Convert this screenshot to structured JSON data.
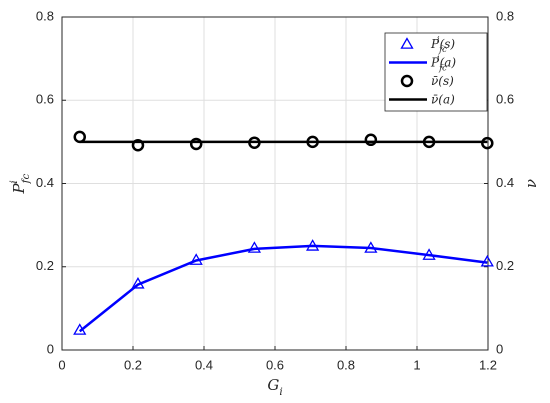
{
  "chart_data": {
    "type": "line",
    "xlabel": {
      "base": "G",
      "sub": "i"
    },
    "ylabel": {
      "base": "P",
      "sub": "fc",
      "sup": "i"
    },
    "y2label": {
      "base": "ν"
    },
    "xlim": [
      0,
      1.2
    ],
    "xticks": [
      0,
      0.2,
      0.4,
      0.6,
      0.8,
      1,
      1.2
    ],
    "ylim": [
      0,
      0.8
    ],
    "yticks": [
      0,
      0.2,
      0.4,
      0.6,
      0.8
    ],
    "y2lim": [
      0,
      0.8
    ],
    "y2ticks": [
      0,
      0.2,
      0.4,
      0.6,
      0.8
    ],
    "grid": true,
    "legend": "upper right",
    "x": [
      0.05,
      0.214,
      0.378,
      0.542,
      0.706,
      0.87,
      1.034,
      1.198
    ],
    "series": [
      {
        "name": {
          "base": "P",
          "sub": "fc",
          "sup": "i",
          "tail": "(s)"
        },
        "color": "#0000ff",
        "marker": "triangle",
        "values": [
          0.048,
          0.159,
          0.216,
          0.245,
          0.25,
          0.245,
          0.228,
          0.212
        ]
      },
      {
        "name": {
          "base": "P",
          "sub": "fc",
          "sup": "i",
          "tail": "(a)"
        },
        "color": "#0000ff",
        "marker": "none",
        "values": [
          0.045,
          0.157,
          0.215,
          0.243,
          0.25,
          0.245,
          0.228,
          0.21
        ]
      },
      {
        "name": {
          "base": "ν̄",
          "tail": "(s)"
        },
        "color": "#000000",
        "marker": "circle",
        "axis": "y2",
        "values": [
          0.512,
          0.492,
          0.495,
          0.498,
          0.5,
          0.505,
          0.5,
          0.497
        ]
      },
      {
        "name": {
          "base": "ν̄",
          "tail": "(a)"
        },
        "color": "#000000",
        "marker": "none",
        "axis": "y2",
        "values": [
          0.5,
          0.5,
          0.5,
          0.5,
          0.5,
          0.5,
          0.5,
          0.5
        ]
      }
    ]
  }
}
